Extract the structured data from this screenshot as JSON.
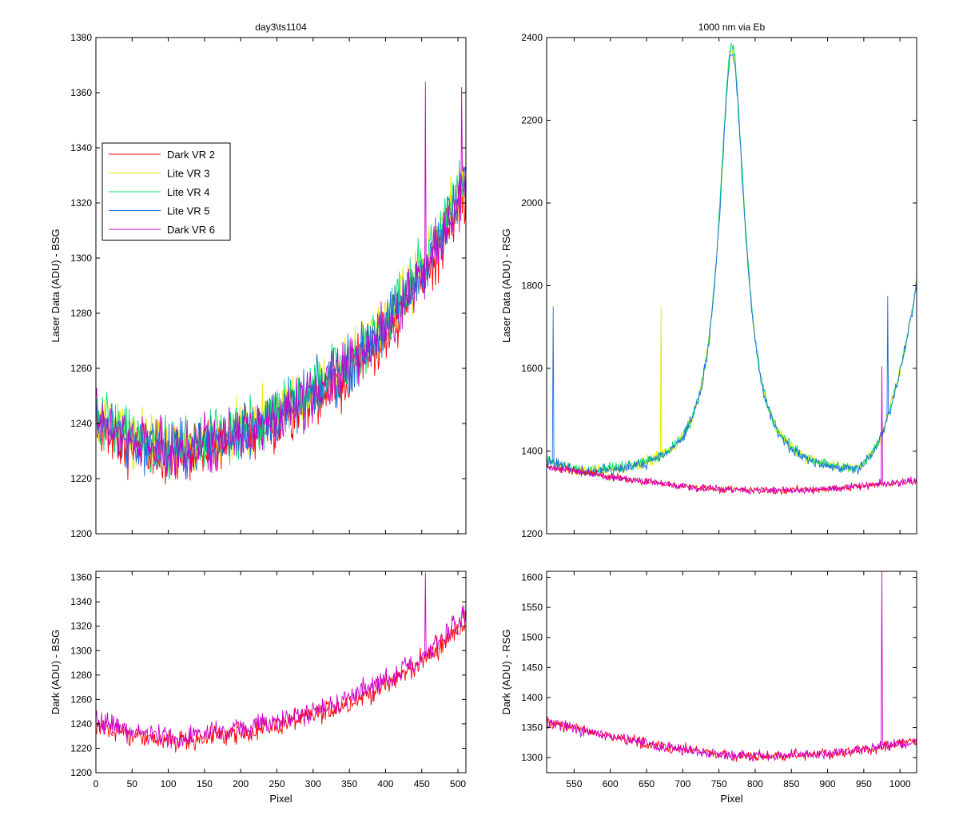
{
  "figure": {
    "panels_meta": "4 panels: top-left, top-right, bottom-left, bottom-right"
  },
  "chart_data": [
    {
      "id": "top_left",
      "type": "line",
      "title": "day3\\ts1104",
      "xlabel": "",
      "ylabel": "Laser Data (ADU) - BSG",
      "xlim": [
        0,
        511
      ],
      "ylim": [
        1200,
        1380
      ],
      "xticks": [
        0,
        50,
        100,
        150,
        200,
        250,
        300,
        350,
        400,
        450,
        500
      ],
      "show_xtick_labels": false,
      "yticks": [
        1200,
        1220,
        1240,
        1260,
        1280,
        1300,
        1320,
        1340,
        1360,
        1380
      ],
      "grid": false,
      "legend": {
        "placement": "upper-left",
        "entries": [
          "Dark VR 2",
          "Lite VR 3",
          "Lite VR 4",
          "Lite VR 5",
          "Dark VR 6"
        ]
      },
      "series": [
        {
          "name": "Dark VR 2",
          "color": "#ff0000",
          "model": "bowl",
          "x_range": [
            0,
            511
          ],
          "values_approx": {
            "start": 1240,
            "min": 1228,
            "min_x": 110,
            "end": 1325
          },
          "noise": 9
        },
        {
          "name": "Lite VR 3",
          "color": "#e6e600",
          "model": "bowl",
          "x_range": [
            0,
            511
          ],
          "values_approx": {
            "start": 1243,
            "min": 1231,
            "min_x": 110,
            "end": 1330
          },
          "noise": 9
        },
        {
          "name": "Lite VR 4",
          "color": "#00e070",
          "model": "bowl",
          "x_range": [
            0,
            511
          ],
          "values_approx": {
            "start": 1243,
            "min": 1231,
            "min_x": 110,
            "end": 1330
          },
          "noise": 9
        },
        {
          "name": "Lite VR 5",
          "color": "#1a6fe0",
          "model": "bowl",
          "x_range": [
            0,
            511
          ],
          "values_approx": {
            "start": 1242,
            "min": 1230,
            "min_x": 110,
            "end": 1328
          },
          "noise": 9
        },
        {
          "name": "Dark VR 6",
          "color": "#cc00cc",
          "model": "bowl",
          "x_range": [
            0,
            511
          ],
          "values_approx": {
            "start": 1242,
            "min": 1230,
            "min_x": 110,
            "end": 1328
          },
          "noise": 9,
          "spikes": [
            {
              "x": 455,
              "y": 1364
            },
            {
              "x": 505,
              "y": 1362
            }
          ]
        }
      ]
    },
    {
      "id": "top_right",
      "type": "line",
      "title": "1000 nm via Eb",
      "xlabel": "",
      "ylabel": "Laser Data (ADU) - RSG",
      "xlim": [
        512,
        1023
      ],
      "ylim": [
        1200,
        2400
      ],
      "xticks": [
        550,
        600,
        650,
        700,
        750,
        800,
        850,
        900,
        950,
        1000
      ],
      "show_xtick_labels": false,
      "yticks": [
        1200,
        1400,
        1600,
        1800,
        2000,
        2200,
        2400
      ],
      "grid": false,
      "series": [
        {
          "name": "Lite VR 3",
          "color": "#e6e600",
          "model": "peak",
          "x_range": [
            512,
            1023
          ],
          "values_approx": {
            "baseline": 1340,
            "peak": 2370,
            "peak_x": 768,
            "end": 1830
          },
          "noise": 12,
          "spikes": [
            {
              "x": 670,
              "y": 1750
            }
          ]
        },
        {
          "name": "Lite VR 4",
          "color": "#00e070",
          "model": "peak",
          "x_range": [
            512,
            1023
          ],
          "values_approx": {
            "baseline": 1340,
            "peak": 2380,
            "peak_x": 768,
            "end": 1830
          },
          "noise": 12
        },
        {
          "name": "Lite VR 5",
          "color": "#1a6fe0",
          "model": "peak",
          "x_range": [
            512,
            1023
          ],
          "values_approx": {
            "baseline": 1338,
            "peak": 2360,
            "peak_x": 768,
            "end": 1825
          },
          "noise": 12,
          "spikes": [
            {
              "x": 521,
              "y": 1750
            },
            {
              "x": 983,
              "y": 1775
            }
          ]
        },
        {
          "name": "Dark VR 2",
          "color": "#ff0000",
          "model": "dark",
          "x_range": [
            512,
            1023
          ],
          "values_approx": {
            "start": 1362,
            "min": 1305,
            "min_x": 820,
            "end": 1330
          },
          "noise": 8
        },
        {
          "name": "Dark VR 6",
          "color": "#cc00cc",
          "model": "dark",
          "x_range": [
            512,
            1023
          ],
          "values_approx": {
            "start": 1362,
            "min": 1305,
            "min_x": 820,
            "end": 1330
          },
          "noise": 8,
          "spikes": [
            {
              "x": 975,
              "y": 1605
            }
          ]
        }
      ]
    },
    {
      "id": "bottom_left",
      "type": "line",
      "title": "",
      "xlabel": "Pixel",
      "ylabel": "Dark (ADU) - BSG",
      "xlim": [
        0,
        511
      ],
      "ylim": [
        1200,
        1365
      ],
      "xticks": [
        0,
        50,
        100,
        150,
        200,
        250,
        300,
        350,
        400,
        450,
        500
      ],
      "show_xtick_labels": true,
      "yticks": [
        1200,
        1220,
        1240,
        1260,
        1280,
        1300,
        1320,
        1340,
        1360
      ],
      "grid": false,
      "series": [
        {
          "name": "Dark VR 2",
          "color": "#ff0000",
          "model": "bowl",
          "x_range": [
            0,
            511
          ],
          "values_approx": {
            "start": 1240,
            "min": 1226,
            "min_x": 110,
            "end": 1325
          },
          "noise": 8
        },
        {
          "name": "Dark VR 6",
          "color": "#cc00cc",
          "model": "bowl",
          "x_range": [
            0,
            511
          ],
          "values_approx": {
            "start": 1243,
            "min": 1229,
            "min_x": 110,
            "end": 1330
          },
          "noise": 8,
          "spikes": [
            {
              "x": 455,
              "y": 1364
            }
          ]
        }
      ]
    },
    {
      "id": "bottom_right",
      "type": "line",
      "title": "",
      "xlabel": "Pixel",
      "ylabel": "Dark (ADU) - RSG",
      "xlim": [
        512,
        1023
      ],
      "ylim": [
        1275,
        1610
      ],
      "xticks": [
        550,
        600,
        650,
        700,
        750,
        800,
        850,
        900,
        950,
        1000
      ],
      "show_xtick_labels": true,
      "yticks": [
        1300,
        1350,
        1400,
        1450,
        1500,
        1550,
        1600
      ],
      "grid": false,
      "series": [
        {
          "name": "Dark VR 2",
          "color": "#ff0000",
          "model": "dark",
          "x_range": [
            512,
            1023
          ],
          "values_approx": {
            "start": 1360,
            "min": 1303,
            "min_x": 820,
            "end": 1328
          },
          "noise": 8
        },
        {
          "name": "Dark VR 6",
          "color": "#cc00cc",
          "model": "dark",
          "x_range": [
            512,
            1023
          ],
          "values_approx": {
            "start": 1360,
            "min": 1303,
            "min_x": 820,
            "end": 1328
          },
          "noise": 8,
          "spikes": [
            {
              "x": 975,
              "y": 1610
            }
          ]
        }
      ]
    }
  ]
}
